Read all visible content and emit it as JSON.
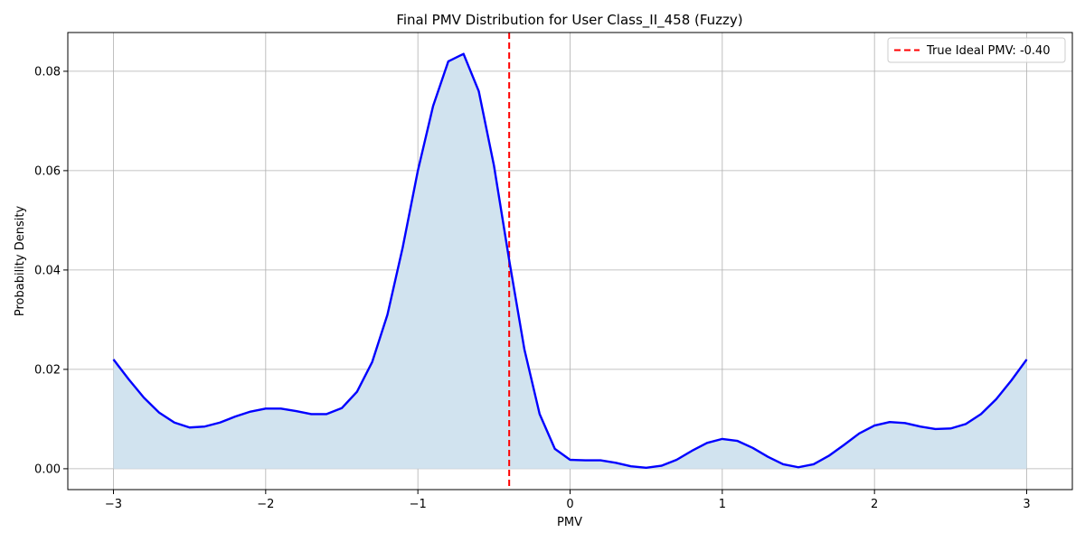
{
  "chart_data": {
    "type": "area",
    "title": "Final PMV Distribution for User Class_II_458 (Fuzzy)",
    "xlabel": "PMV",
    "ylabel": "Probability Density",
    "xlim": [
      -3.3,
      3.3
    ],
    "ylim": [
      -0.0042,
      0.0878
    ],
    "xticks": [
      -3,
      -2,
      -1,
      0,
      1,
      2,
      3
    ],
    "xtick_labels": [
      "−3",
      "−2",
      "−1",
      "0",
      "1",
      "2",
      "3"
    ],
    "yticks": [
      0.0,
      0.02,
      0.04,
      0.06,
      0.08
    ],
    "ytick_labels": [
      "0.00",
      "0.02",
      "0.04",
      "0.06",
      "0.08"
    ],
    "grid": true,
    "legend_position": "top-right",
    "series": [
      {
        "color": "#0000ff",
        "fill_color": "#d1e3ef",
        "x": [
          -3.0,
          -2.9,
          -2.8,
          -2.7,
          -2.6,
          -2.5,
          -2.4,
          -2.3,
          -2.2,
          -2.1,
          -2.0,
          -1.9,
          -1.8,
          -1.7,
          -1.6,
          -1.5,
          -1.4,
          -1.3,
          -1.2,
          -1.1,
          -1.0,
          -0.9,
          -0.8,
          -0.7,
          -0.6,
          -0.5,
          -0.4,
          -0.3,
          -0.2,
          -0.1,
          0.0,
          0.1,
          0.2,
          0.3,
          0.4,
          0.5,
          0.6,
          0.7,
          0.8,
          0.9,
          1.0,
          1.1,
          1.2,
          1.3,
          1.4,
          1.5,
          1.6,
          1.7,
          1.8,
          1.9,
          2.0,
          2.1,
          2.2,
          2.3,
          2.4,
          2.5,
          2.6,
          2.7,
          2.8,
          2.9,
          3.0
        ],
        "y": [
          0.022,
          0.018,
          0.0143,
          0.0113,
          0.0093,
          0.0083,
          0.0085,
          0.0093,
          0.0105,
          0.0115,
          0.0121,
          0.0121,
          0.0116,
          0.011,
          0.011,
          0.0122,
          0.0155,
          0.0215,
          0.031,
          0.0445,
          0.06,
          0.073,
          0.082,
          0.0835,
          0.076,
          0.061,
          0.042,
          0.024,
          0.011,
          0.004,
          0.0018,
          0.0017,
          0.0017,
          0.0012,
          0.0005,
          0.0002,
          0.0006,
          0.0018,
          0.0036,
          0.0052,
          0.006,
          0.0056,
          0.0042,
          0.0024,
          0.0009,
          0.0003,
          0.0009,
          0.0026,
          0.0048,
          0.0071,
          0.0087,
          0.0094,
          0.0092,
          0.0085,
          0.008,
          0.0081,
          0.009,
          0.011,
          0.014,
          0.0178,
          0.022
        ]
      }
    ],
    "reference_line": {
      "x": -0.4,
      "color": "#ff0000",
      "style": "dashed",
      "label": "True Ideal PMV: -0.40"
    }
  }
}
